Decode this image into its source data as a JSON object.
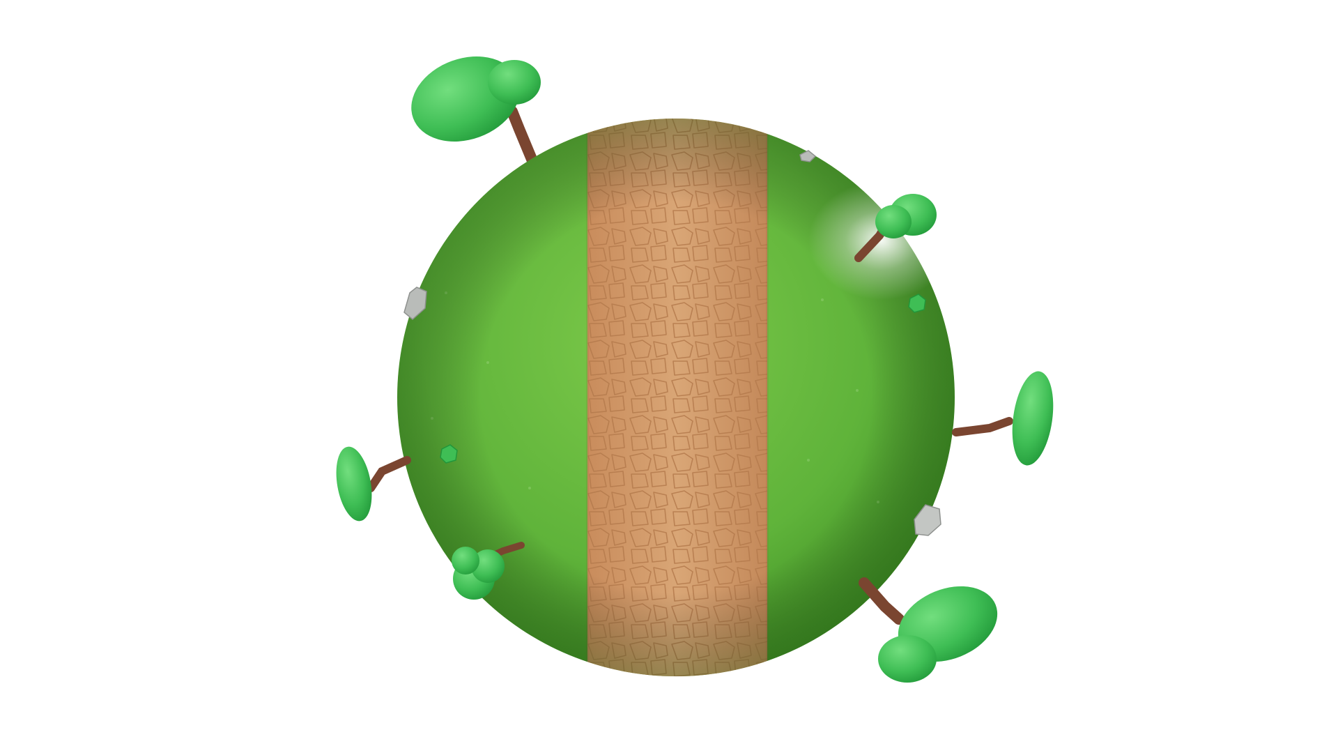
{
  "scene": {
    "background_color": "#ffffff",
    "planet": {
      "grass_color": "#5fb33a",
      "grass_highlight": "#8fd35a",
      "grass_shadow": "#3f8e24",
      "path_color": "#d39a6a",
      "path_crack_color": "#b9794a"
    },
    "tree_colors": {
      "foliage": "#3fbe55",
      "foliage_highlight": "#6fdc7a",
      "foliage_shadow": "#22963a",
      "trunk": "#7a4530"
    },
    "rock_color": "#b9bcb9",
    "icons": [
      "planet-sphere",
      "dirt-path",
      "tree",
      "rock",
      "bush"
    ]
  }
}
